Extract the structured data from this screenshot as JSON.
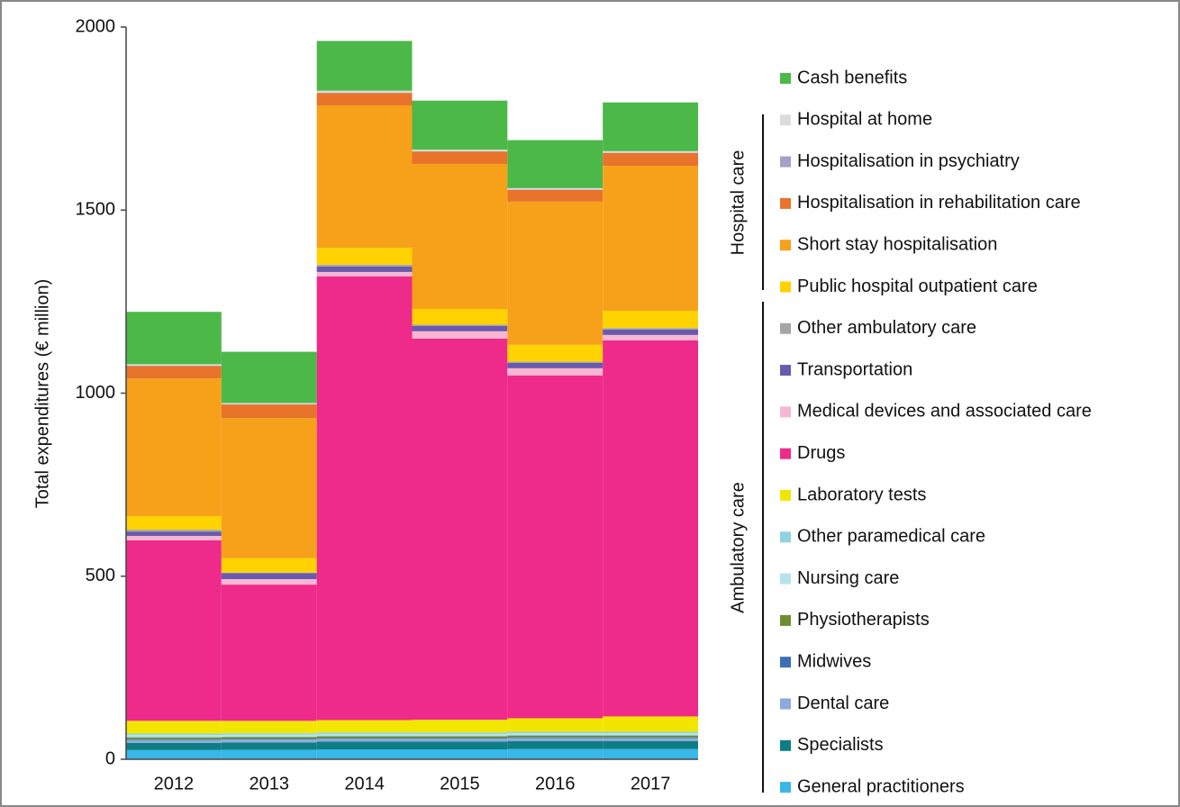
{
  "chart_data": {
    "type": "stacked_bar",
    "y_label": "Total expenditures (€ million)",
    "categories": [
      "2012",
      "2013",
      "2014",
      "2015",
      "2016",
      "2017"
    ],
    "ylim": [
      0,
      2000
    ],
    "yticks": [
      0,
      500,
      1000,
      1500,
      2000
    ],
    "series": [
      {
        "name": "General practitioners",
        "color": "#38b7e8",
        "values": [
          25,
          26,
          27,
          27,
          28,
          28
        ]
      },
      {
        "name": "Specialists",
        "color": "#0e7e84",
        "values": [
          20,
          20,
          21,
          21,
          22,
          22
        ]
      },
      {
        "name": "Dental care",
        "color": "#8eaadb",
        "values": [
          8,
          8,
          8,
          8,
          8,
          8
        ]
      },
      {
        "name": "Midwives",
        "color": "#3b6fb6",
        "values": [
          2,
          2,
          2,
          2,
          2,
          2
        ]
      },
      {
        "name": "Physiotherapists",
        "color": "#6b8e2f",
        "values": [
          5,
          5,
          5,
          5,
          5,
          5
        ]
      },
      {
        "name": "Nursing care",
        "color": "#b4e3ee",
        "values": [
          6,
          6,
          6,
          6,
          6,
          6
        ]
      },
      {
        "name": "Other paramedical care",
        "color": "#8fd3de",
        "values": [
          4,
          4,
          4,
          4,
          4,
          4
        ]
      },
      {
        "name": "Laboratory tests",
        "color": "#f2e600",
        "values": [
          35,
          34,
          34,
          35,
          37,
          42
        ]
      },
      {
        "name": "Drugs",
        "color": "#ee2a8b",
        "values": [
          493,
          372,
          1212,
          1041,
          936,
          1027
        ]
      },
      {
        "name": "Medical devices and associated care",
        "color": "#f7b6d2",
        "values": [
          12,
          15,
          12,
          20,
          20,
          15
        ]
      },
      {
        "name": "Transportation",
        "color": "#6a5aad",
        "values": [
          12,
          16,
          15,
          15,
          15,
          15
        ]
      },
      {
        "name": "Other ambulatory care",
        "color": "#a6a6a6",
        "values": [
          5,
          2,
          5,
          3,
          3,
          4
        ]
      },
      {
        "name": "Public hospital outpatient care",
        "color": "#ffd200",
        "values": [
          37,
          39,
          46,
          43,
          46,
          47
        ]
      },
      {
        "name": "Short stay hospitalisation",
        "color": "#f7a11a",
        "values": [
          376,
          383,
          389,
          396,
          391,
          396
        ]
      },
      {
        "name": "Hospitalisation in rehabilitation care",
        "color": "#e8732a",
        "values": [
          34,
          37,
          34,
          34,
          32,
          35
        ]
      },
      {
        "name": "Hospitalisation in psychiatry",
        "color": "#a89fc8",
        "values": [
          1,
          1,
          1,
          1,
          1,
          1
        ]
      },
      {
        "name": "Hospital at home",
        "color": "#dcdcdc",
        "values": [
          4,
          3,
          5,
          4,
          4,
          4
        ]
      },
      {
        "name": "Cash benefits",
        "color": "#4cb848",
        "values": [
          143,
          140,
          136,
          134,
          131,
          133
        ]
      }
    ],
    "legend_groups": [
      "Hospital care",
      "Ambulatory care"
    ]
  }
}
